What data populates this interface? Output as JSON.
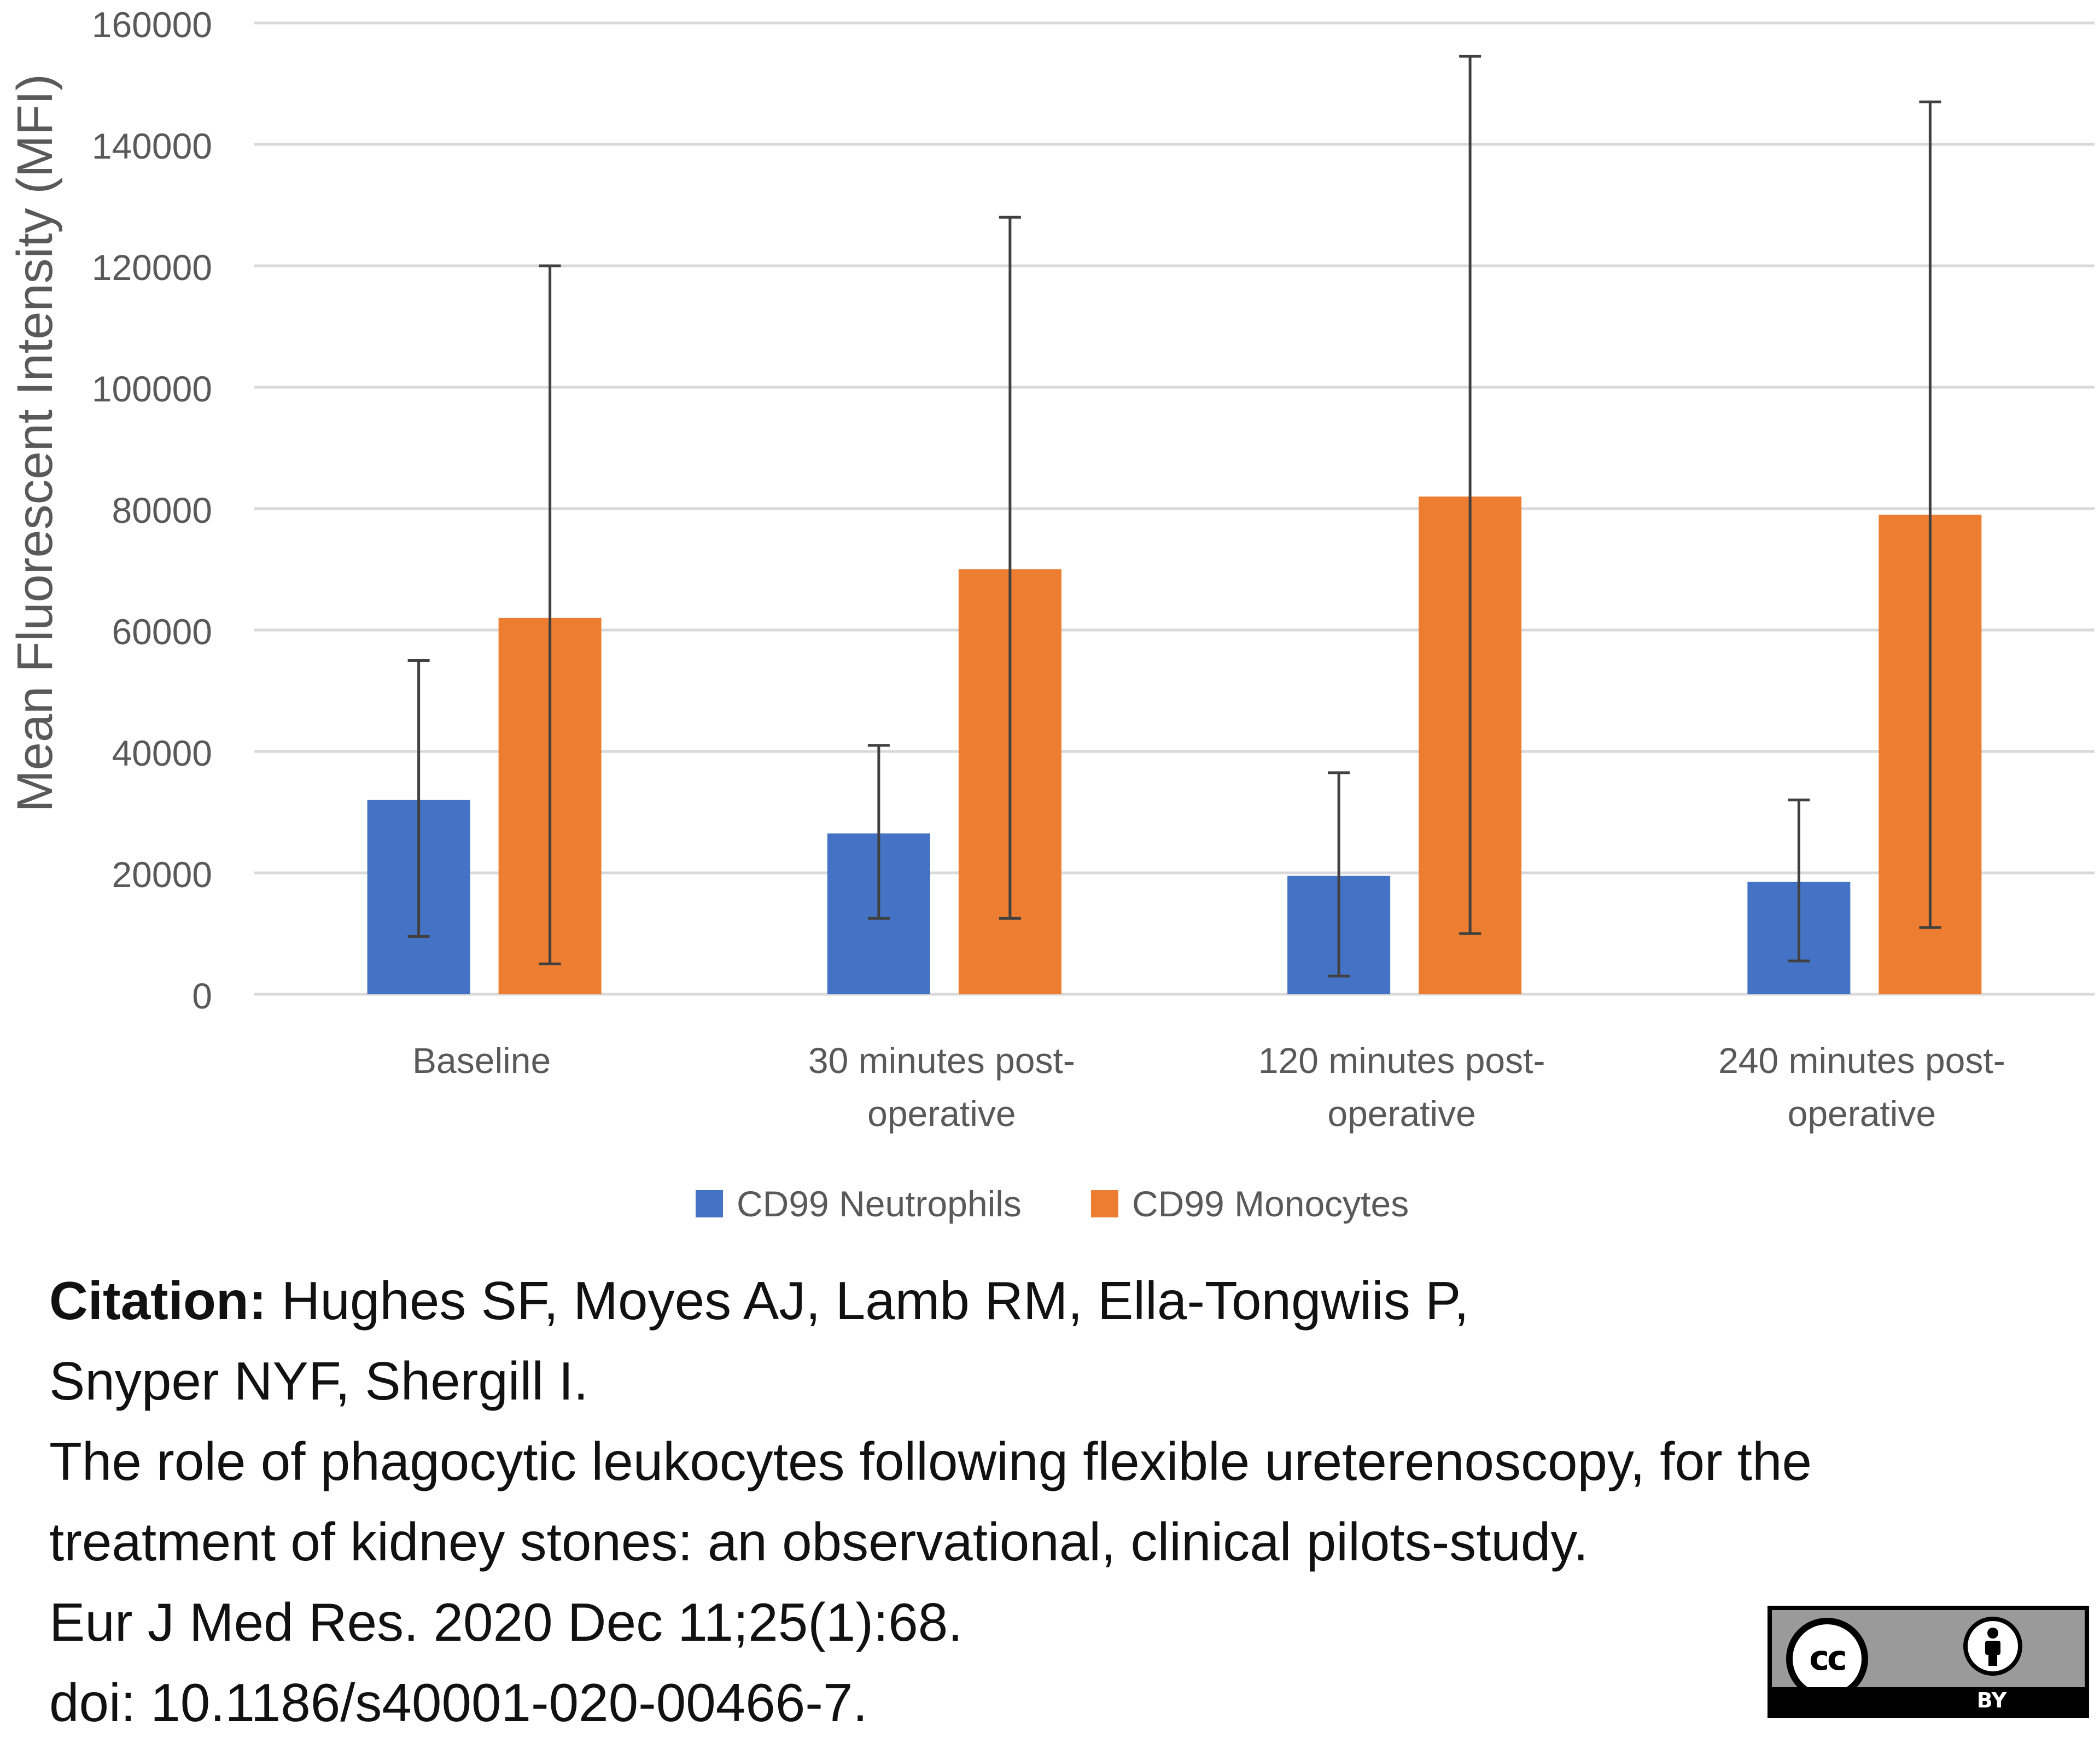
{
  "chart_data": {
    "type": "bar",
    "title": "",
    "xlabel": "",
    "ylabel": "Mean Fluorescent Intensity (MFI)",
    "ylim": [
      0,
      160000
    ],
    "yticks": [
      0,
      20000,
      40000,
      60000,
      80000,
      100000,
      120000,
      140000,
      160000
    ],
    "ytick_labels": [
      "0",
      "20000",
      "40000",
      "60000",
      "80000",
      "100000",
      "120000",
      "140000",
      "160000"
    ],
    "categories": [
      [
        "Baseline"
      ],
      [
        "30 minutes post-",
        "operative"
      ],
      [
        "120 minutes post-",
        "operative"
      ],
      [
        "240 minutes post-",
        "operative"
      ]
    ],
    "series": [
      {
        "name": "CD99 Neutrophils",
        "color": "#4472C4",
        "values": [
          32000,
          26500,
          19500,
          18500
        ],
        "error_low": [
          9500,
          12500,
          3000,
          5500
        ],
        "error_high": [
          55000,
          41000,
          36500,
          32000
        ]
      },
      {
        "name": "CD99 Monocytes",
        "color": "#ED7D31",
        "values": [
          62000,
          70000,
          82000,
          79000
        ],
        "error_low": [
          5000,
          12500,
          10000,
          11000
        ],
        "error_high": [
          120000,
          128000,
          154500,
          147000
        ]
      }
    ],
    "grid": true,
    "legend_position": "bottom-center"
  },
  "citation": {
    "label": "Citation:",
    "authors_1": "Hughes SF, Moyes AJ, Lamb RM, Ella-Tongwiis P,",
    "authors_2": "Snyper NYF, Shergill I.",
    "title_1": "The role of phagocytic leukocytes following flexible ureterenoscopy, for the",
    "title_2": "treatment of kidney stones: an observational, clinical pilots-study.",
    "journal": "Eur J Med Res. 2020 Dec 11;25(1):68.",
    "doi": "doi: 10.1186/s40001-020-00466-7."
  },
  "license": {
    "cc_text": "cc",
    "by_text": "BY"
  }
}
